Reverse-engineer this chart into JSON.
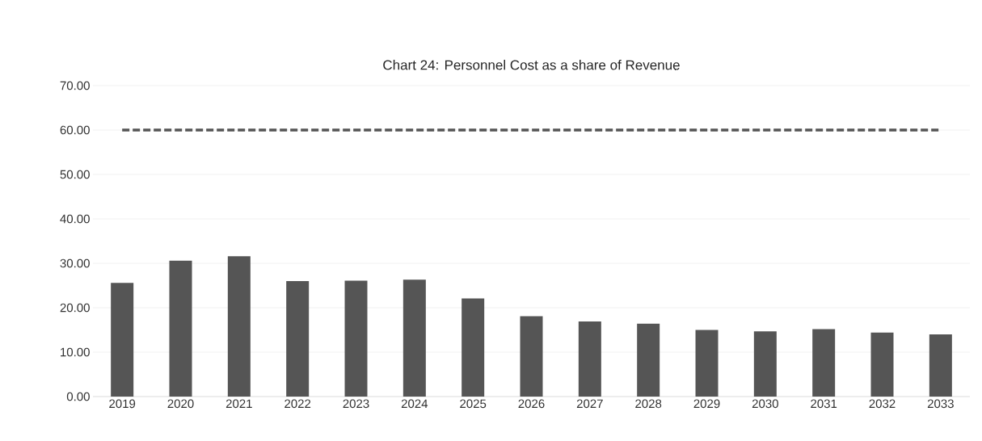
{
  "chart_data": {
    "type": "bar",
    "title": "Chart 24: Personnel Cost as a share of Revenue",
    "categories": [
      "2019",
      "2020",
      "2021",
      "2022",
      "2023",
      "2024",
      "2025",
      "2026",
      "2027",
      "2028",
      "2029",
      "2030",
      "2031",
      "2032",
      "2033"
    ],
    "series": [
      {
        "color": "#555555",
        "values": [
          25.6,
          30.6,
          31.6,
          26.0,
          26.1,
          26.3,
          22.1,
          18.1,
          16.9,
          16.4,
          15.0,
          14.7,
          15.2,
          14.4,
          14.0
        ]
      },
      {
        "type": "line",
        "color": "#555555",
        "line_style": "dashed",
        "values": [
          60,
          60,
          60,
          60,
          60,
          60,
          60,
          60,
          60,
          60,
          60,
          60,
          60,
          60,
          60
        ]
      }
    ],
    "ylim": [
      0,
      70
    ],
    "yticks": [
      {
        "value": 0,
        "label": "0.00"
      },
      {
        "value": 10,
        "label": "10.00"
      },
      {
        "value": 20,
        "label": "20.00"
      },
      {
        "value": 30,
        "label": "30.00"
      },
      {
        "value": 40,
        "label": "40.00"
      },
      {
        "value": 50,
        "label": "50.00"
      },
      {
        "value": 60,
        "label": "60.00"
      },
      {
        "value": 70,
        "label": "70.00"
      }
    ],
    "grid": "y"
  }
}
